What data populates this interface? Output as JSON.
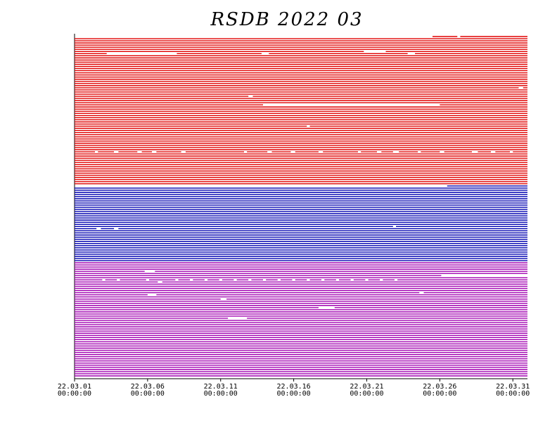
{
  "chart_data": {
    "type": "timeline",
    "title": "RSDB  2022  03",
    "xlim": [
      0,
      31
    ],
    "xticks": [
      {
        "value": 0,
        "label": "22.03.01\n00:00:00"
      },
      {
        "value": 5,
        "label": "22.03.06\n00:00:00"
      },
      {
        "value": 10,
        "label": "22.03.11\n00:00:00"
      },
      {
        "value": 15,
        "label": "22.03.16\n00:00:00"
      },
      {
        "value": 20,
        "label": "22.03.21\n00:00:00"
      },
      {
        "value": 25,
        "label": "22.03.26\n00:00:00"
      },
      {
        "value": 30,
        "label": "22.03.31\n00:00:00"
      }
    ],
    "series": [
      {
        "color": "#e00000",
        "values": [
          [
            [
              24.5,
              26.2
            ],
            [
              26.4,
              31
            ]
          ],
          [
            [
              0,
              31
            ]
          ],
          [
            [
              0,
              31
            ]
          ],
          [
            [
              0,
              31
            ]
          ],
          [
            [
              0,
              31
            ]
          ],
          [
            [
              0,
              31
            ]
          ],
          [
            [
              0,
              31
            ]
          ],
          [
            [
              0,
              19.8
            ],
            [
              21.3,
              31
            ]
          ],
          [
            [
              0,
              2.2
            ],
            [
              7,
              12.8
            ],
            [
              13.3,
              22.8
            ],
            [
              23.3,
              31
            ]
          ],
          [
            [
              0,
              31
            ]
          ],
          [
            [
              0,
              31
            ]
          ],
          [
            [
              0,
              31
            ]
          ],
          [
            [
              0,
              31
            ]
          ],
          [
            [
              0,
              31
            ]
          ],
          [
            [
              0,
              31
            ]
          ],
          [
            [
              0,
              31
            ]
          ],
          [
            [
              0,
              31
            ]
          ],
          [
            [
              0,
              31
            ]
          ],
          [
            [
              0,
              31
            ]
          ],
          [
            [
              0,
              31
            ]
          ],
          [
            [
              0,
              31
            ]
          ],
          [
            [
              0,
              31
            ]
          ],
          [
            [
              0,
              31
            ]
          ],
          [
            [
              0,
              31
            ]
          ],
          [
            [
              0,
              30.4
            ],
            [
              30.7,
              31
            ]
          ],
          [
            [
              0,
              31
            ]
          ],
          [
            [
              0,
              31
            ]
          ],
          [
            [
              0,
              31
            ]
          ],
          [
            [
              0,
              11.9
            ],
            [
              12.2,
              31
            ]
          ],
          [
            [
              0,
              31
            ]
          ],
          [
            [
              0,
              31
            ]
          ],
          [
            [
              0,
              31
            ]
          ],
          [
            [
              0,
              12.9
            ],
            [
              25,
              31
            ]
          ],
          [
            [
              0,
              31
            ]
          ],
          [
            [
              0,
              31
            ]
          ],
          [
            [
              0,
              31
            ]
          ],
          [
            [
              0,
              31
            ]
          ],
          [
            [
              0,
              31
            ]
          ],
          [
            [
              0,
              31
            ]
          ],
          [
            [
              0,
              31
            ]
          ],
          [
            [
              0,
              31
            ]
          ],
          [
            [
              0,
              31
            ]
          ],
          [
            [
              0,
              15.9
            ],
            [
              16.1,
              31
            ]
          ],
          [
            [
              0,
              31
            ]
          ],
          [
            [
              0,
              31
            ]
          ],
          [
            [
              0,
              31
            ]
          ],
          [
            [
              0,
              31
            ]
          ],
          [
            [
              0,
              31
            ]
          ],
          [
            [
              0,
              31
            ]
          ],
          [
            [
              0,
              31
            ]
          ],
          [
            [
              0,
              31
            ]
          ],
          [
            [
              0,
              31
            ]
          ],
          [
            [
              0,
              31
            ]
          ],
          [
            [
              0,
              31
            ]
          ],
          [
            [
              0,
              1.4
            ],
            [
              1.6,
              2.7
            ],
            [
              3,
              4.3
            ],
            [
              4.6,
              5.3
            ],
            [
              5.6,
              7.3
            ],
            [
              7.6,
              11.6
            ],
            [
              11.8,
              13.2
            ],
            [
              13.5,
              14.8
            ],
            [
              15.1,
              16.7
            ],
            [
              17,
              19.4
            ],
            [
              19.6,
              20.7
            ],
            [
              21,
              21.8
            ],
            [
              22.2,
              23.5
            ],
            [
              23.7,
              25
            ],
            [
              25.3,
              27.2
            ],
            [
              27.6,
              28.5
            ],
            [
              28.8,
              29.8
            ],
            [
              30,
              31
            ]
          ],
          [
            [
              0,
              31
            ]
          ],
          [
            [
              0,
              31
            ]
          ],
          [
            [
              0,
              31
            ]
          ],
          [
            [
              0,
              31
            ]
          ],
          [
            [
              0,
              31
            ]
          ],
          [
            [
              0,
              31
            ]
          ],
          [
            [
              0,
              31
            ]
          ],
          [
            [
              0,
              31
            ]
          ],
          [
            [
              0,
              31
            ]
          ],
          [
            [
              0,
              31
            ]
          ],
          [
            [
              0,
              31
            ]
          ],
          [
            [
              0,
              31
            ]
          ],
          [
            [
              0,
              31
            ]
          ],
          [
            [
              0,
              31
            ]
          ],
          [
            [
              0,
              31
            ]
          ]
        ]
      },
      {
        "color": "#0000b0",
        "values": [
          [
            [
              25.5,
              31
            ]
          ],
          [
            [
              0,
              31
            ]
          ],
          [
            [
              0,
              31
            ]
          ],
          [
            [
              0,
              31
            ]
          ],
          [
            [
              0,
              31
            ]
          ],
          [
            [
              0,
              31
            ]
          ],
          [
            [
              0,
              31
            ]
          ],
          [
            [
              0,
              31
            ]
          ],
          [
            [
              0,
              31
            ]
          ],
          [
            [
              0,
              31
            ]
          ],
          [
            [
              0,
              31
            ]
          ],
          [
            [
              0,
              31
            ]
          ],
          [
            [
              0,
              31
            ]
          ],
          [
            [
              0,
              31
            ]
          ],
          [
            [
              0,
              31
            ]
          ],
          [
            [
              0,
              31
            ]
          ],
          [
            [
              0,
              31
            ]
          ],
          [
            [
              0,
              31
            ]
          ],
          [
            [
              0,
              31
            ]
          ],
          [
            [
              0,
              21.8
            ],
            [
              22,
              31
            ]
          ],
          [
            [
              0,
              1.5
            ],
            [
              1.8,
              2.7
            ],
            [
              3,
              31
            ]
          ],
          [
            [
              0,
              31
            ]
          ],
          [
            [
              0,
              31
            ]
          ],
          [
            [
              0,
              31
            ]
          ],
          [
            [
              0,
              31
            ]
          ],
          [
            [
              0,
              31
            ]
          ],
          [
            [
              0,
              31
            ]
          ],
          [
            [
              0,
              31
            ]
          ],
          [
            [
              0,
              31
            ]
          ],
          [
            [
              0,
              31
            ]
          ],
          [
            [
              0,
              31
            ]
          ],
          [
            [
              0,
              31
            ]
          ],
          [
            [
              0,
              31
            ]
          ],
          [
            [
              0,
              31
            ]
          ],
          [
            [
              0,
              31
            ]
          ],
          [
            [
              0,
              31
            ]
          ]
        ]
      },
      {
        "color": "#a000b0",
        "values": [
          [
            [
              0,
              31
            ]
          ],
          [
            [
              0,
              31
            ]
          ],
          [
            [
              0,
              31
            ]
          ],
          [
            [
              0,
              31
            ]
          ],
          [
            [
              0,
              4.8
            ],
            [
              5.5,
              31
            ]
          ],
          [
            [
              0,
              31
            ]
          ],
          [
            [
              0,
              25.1
            ]
          ],
          [
            [
              0,
              31
            ]
          ],
          [
            [
              0,
              1.9
            ],
            [
              2.1,
              2.9
            ],
            [
              3.1,
              4.9
            ],
            [
              5.1,
              6.9
            ],
            [
              7.1,
              7.9
            ],
            [
              8.1,
              8.9
            ],
            [
              9.1,
              9.9
            ],
            [
              10.1,
              10.9
            ],
            [
              11.1,
              11.9
            ],
            [
              12.1,
              12.9
            ],
            [
              13.1,
              13.9
            ],
            [
              14.1,
              14.9
            ],
            [
              15.1,
              15.9
            ],
            [
              16.1,
              16.9
            ],
            [
              17.1,
              17.9
            ],
            [
              18.1,
              18.9
            ],
            [
              19.1,
              19.9
            ],
            [
              20.1,
              20.9
            ],
            [
              21.1,
              21.9
            ],
            [
              22.1,
              31
            ]
          ],
          [
            [
              0,
              5.7
            ],
            [
              6,
              31
            ]
          ],
          [
            [
              0,
              31
            ]
          ],
          [
            [
              0,
              31
            ]
          ],
          [
            [
              0,
              31
            ]
          ],
          [
            [
              0,
              31
            ]
          ],
          [
            [
              0,
              23.6
            ],
            [
              23.9,
              31
            ]
          ],
          [
            [
              0,
              5
            ],
            [
              5.6,
              31
            ]
          ],
          [
            [
              0,
              31
            ]
          ],
          [
            [
              0,
              10
            ],
            [
              10.4,
              31
            ]
          ],
          [
            [
              0,
              31
            ]
          ],
          [
            [
              0,
              31
            ]
          ],
          [
            [
              0,
              31
            ]
          ],
          [
            [
              0,
              16.7
            ],
            [
              17.8,
              31
            ]
          ],
          [
            [
              0,
              31
            ]
          ],
          [
            [
              0,
              31
            ]
          ],
          [
            [
              0,
              31
            ]
          ],
          [
            [
              0,
              31
            ]
          ],
          [
            [
              0,
              10.5
            ],
            [
              11.8,
              31
            ]
          ],
          [
            [
              0,
              31
            ]
          ],
          [
            [
              0,
              31
            ]
          ],
          [
            [
              0,
              31
            ]
          ],
          [
            [
              0,
              31
            ]
          ],
          [
            [
              0,
              31
            ]
          ],
          [
            [
              0,
              31
            ]
          ],
          [
            [
              0,
              31
            ]
          ],
          [
            [
              0,
              31
            ]
          ],
          [
            [
              0,
              31
            ]
          ],
          [
            [
              0,
              31
            ]
          ],
          [
            [
              0,
              31
            ]
          ],
          [
            [
              0,
              31
            ]
          ],
          [
            [
              0,
              31
            ]
          ],
          [
            [
              0,
              31
            ]
          ],
          [
            [
              0,
              31
            ]
          ],
          [
            [
              0,
              31
            ]
          ],
          [
            [
              0,
              31
            ]
          ],
          [
            [
              0,
              31
            ]
          ],
          [
            [
              0,
              31
            ]
          ],
          [
            [
              0,
              31
            ]
          ],
          [
            [
              0,
              31
            ]
          ],
          [
            [
              0,
              31
            ]
          ],
          [
            [
              0,
              31
            ]
          ],
          [
            [
              0,
              31
            ]
          ],
          [
            [
              0,
              31
            ]
          ],
          [
            [
              0,
              31
            ]
          ],
          [
            [
              0,
              31
            ]
          ]
        ]
      }
    ]
  }
}
